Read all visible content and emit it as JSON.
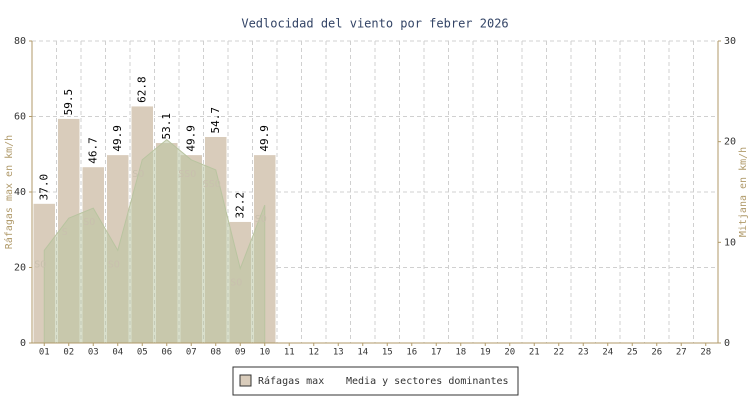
{
  "chart_data": {
    "type": "bar",
    "title": "Vedlocidad del viento por febrer 2026",
    "y_label": "Ráfagas max en km/h",
    "y2_label": "Mitjana en km/h",
    "categories": [
      "01",
      "02",
      "03",
      "04",
      "05",
      "06",
      "07",
      "08",
      "09",
      "10",
      "11",
      "12",
      "13",
      "14",
      "15",
      "16",
      "17",
      "18",
      "19",
      "20",
      "21",
      "22",
      "23",
      "24",
      "25",
      "26",
      "27",
      "28"
    ],
    "series": [
      {
        "name": "Ráfagas max",
        "type": "bar",
        "color": "#d9ccbb",
        "values": [
          37.0,
          59.5,
          46.7,
          49.9,
          62.8,
          53.1,
          49.9,
          54.7,
          32.2,
          49.9,
          null,
          null,
          null,
          null,
          null,
          null,
          null,
          null,
          null,
          null,
          null,
          null,
          null,
          null,
          null,
          null,
          null,
          null
        ],
        "value_labels": [
          "37.0",
          "59.5",
          "46.7",
          "49.9",
          "62.8",
          "53.1",
          "49.9",
          "54.7",
          "32.2",
          "49.9",
          null,
          null,
          null,
          null,
          null,
          null,
          null,
          null,
          null,
          null,
          null,
          null,
          null,
          null,
          null,
          null,
          null,
          null
        ]
      },
      {
        "name": "Media y sectores dominantes",
        "type": "area",
        "axis": "y2",
        "color": "#b9c4a0",
        "values": [
          9.2,
          12.4,
          13.4,
          9.2,
          18.2,
          20.2,
          18.2,
          17.2,
          7.4,
          13.7,
          null,
          null,
          null,
          null,
          null,
          null,
          null,
          null,
          null,
          null,
          null,
          null,
          null,
          null,
          null,
          null,
          null,
          null
        ],
        "labels": [
          "SO",
          "S",
          "SO",
          "SO",
          "SO",
          null,
          "SSO",
          "SSO",
          "SO",
          "SO",
          null,
          null,
          null,
          null,
          null,
          null,
          null,
          null,
          null,
          null,
          null,
          null,
          null,
          null,
          null,
          null,
          null,
          null
        ]
      }
    ],
    "ylim": [
      0,
      80
    ],
    "yticks": [
      0,
      20,
      40,
      60,
      80
    ],
    "y2lim": [
      0,
      30
    ],
    "y2ticks": [
      0,
      10,
      20,
      30
    ],
    "grid": true,
    "legend": "bottom"
  }
}
